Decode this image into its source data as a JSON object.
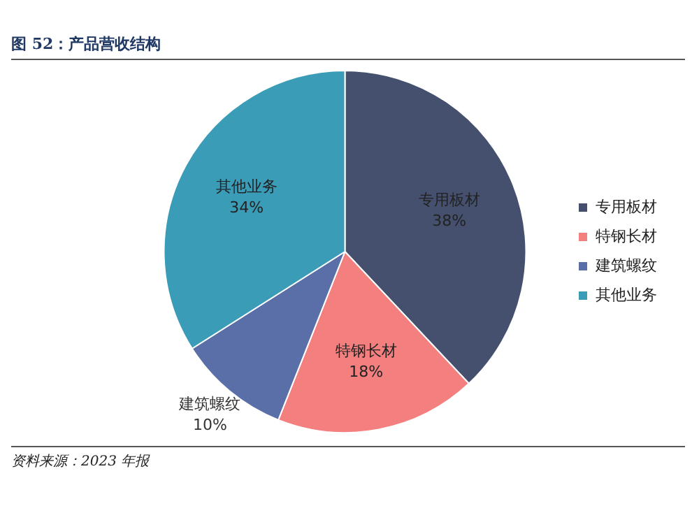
{
  "chart_data": {
    "type": "pie",
    "title": "图 52：产品营收结构",
    "categories": [
      "专用板材",
      "特钢长材",
      "建筑螺纹",
      "其他业务"
    ],
    "values": [
      38,
      18,
      10,
      34
    ],
    "colors": [
      "#44506e",
      "#f47f7f",
      "#5a6ea8",
      "#3b9cb8"
    ],
    "value_labels": [
      "38%",
      "18%",
      "10%",
      "34%"
    ],
    "legend": "right",
    "annotations": [
      "资料来源：2023 年报"
    ]
  }
}
